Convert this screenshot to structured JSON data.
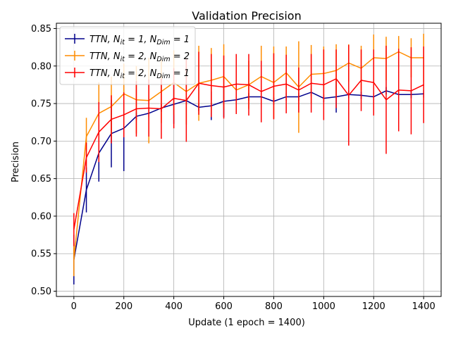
{
  "chart_data": {
    "type": "line",
    "title": "Validation Precision",
    "xlabel": "Update (1 epoch = 1400)",
    "ylabel": "Precision",
    "xlim": [
      -70,
      1470
    ],
    "ylim": [
      0.493,
      0.857
    ],
    "xticks": [
      0,
      200,
      400,
      600,
      800,
      1000,
      1200,
      1400
    ],
    "yticks": [
      0.5,
      0.55,
      0.6,
      0.65,
      0.7,
      0.75,
      0.8,
      0.85
    ],
    "xtick_labels": [
      "0",
      "200",
      "400",
      "600",
      "800",
      "1000",
      "1200",
      "1400"
    ],
    "ytick_labels": [
      "0.50",
      "0.55",
      "0.60",
      "0.65",
      "0.70",
      "0.75",
      "0.80",
      "0.85"
    ],
    "grid": true,
    "legend_position": "top-left",
    "x": [
      0,
      50,
      100,
      150,
      200,
      250,
      300,
      350,
      400,
      450,
      500,
      550,
      600,
      650,
      700,
      750,
      800,
      850,
      900,
      950,
      1000,
      1050,
      1100,
      1150,
      1200,
      1250,
      1300,
      1350,
      1400
    ],
    "series": [
      {
        "name": "TTN, N_it = 1, N_Dim = 1",
        "legend": {
          "prefix": "TTN, N",
          "sub1": "it",
          "mid": " = 1, N",
          "sub2": "Dim",
          "suffix": " = 1"
        },
        "color": "#00008b",
        "values": [
          0.542,
          0.635,
          0.684,
          0.71,
          0.717,
          0.733,
          0.737,
          0.744,
          0.749,
          0.754,
          0.745,
          0.747,
          0.753,
          0.755,
          0.759,
          0.759,
          0.753,
          0.759,
          0.759,
          0.765,
          0.757,
          0.759,
          0.762,
          0.761,
          0.759,
          0.767,
          0.762,
          0.762,
          0.763
        ],
        "err": [
          0.033,
          0.03,
          0.038,
          0.045,
          0.057,
          0.005,
          0.005,
          0.005,
          0.026,
          0.005,
          0.005,
          0.019,
          0.021,
          0.005,
          0.005,
          0.005,
          0.005,
          0.005,
          0.005,
          0.005,
          0.005,
          0.021,
          0.005,
          0.005,
          0.005,
          0.005,
          0.005,
          0.005,
          0.005
        ]
      },
      {
        "name": "TTN, N_it = 2, N_Dim = 2",
        "legend": {
          "prefix": "TTN, N",
          "sub1": "it",
          "mid": " = 2, N",
          "sub2": "Dim",
          "suffix": " = 2"
        },
        "color": "#ff8c00",
        "values": [
          0.542,
          0.706,
          0.737,
          0.746,
          0.763,
          0.755,
          0.754,
          0.766,
          0.778,
          0.766,
          0.777,
          0.781,
          0.786,
          0.768,
          0.775,
          0.786,
          0.778,
          0.791,
          0.772,
          0.789,
          0.79,
          0.794,
          0.804,
          0.797,
          0.811,
          0.81,
          0.819,
          0.811,
          0.811
        ],
        "err": [
          0.022,
          0.025,
          0.041,
          0.04,
          0.04,
          0.045,
          0.057,
          0.042,
          0.043,
          0.044,
          0.05,
          0.043,
          0.043,
          0.03,
          0.032,
          0.041,
          0.048,
          0.035,
          0.061,
          0.039,
          0.036,
          0.035,
          0.025,
          0.03,
          0.031,
          0.029,
          0.021,
          0.026,
          0.032
        ]
      },
      {
        "name": "TTN, N_it = 2, N_Dim = 1",
        "legend": {
          "prefix": "TTN, N",
          "sub1": "it",
          "mid": " = 2, N",
          "sub2": "Dim",
          "suffix": " = 1"
        },
        "color": "#ff0000",
        "values": [
          0.582,
          0.678,
          0.712,
          0.729,
          0.735,
          0.743,
          0.744,
          0.743,
          0.757,
          0.754,
          0.777,
          0.774,
          0.772,
          0.776,
          0.775,
          0.766,
          0.773,
          0.776,
          0.768,
          0.777,
          0.775,
          0.783,
          0.761,
          0.781,
          0.778,
          0.755,
          0.768,
          0.767,
          0.775
        ],
        "err": [
          0.022,
          0.02,
          0.04,
          0.032,
          0.03,
          0.037,
          0.038,
          0.04,
          0.04,
          0.055,
          0.042,
          0.042,
          0.042,
          0.04,
          0.041,
          0.041,
          0.044,
          0.039,
          0.03,
          0.039,
          0.047,
          0.039,
          0.067,
          0.041,
          0.044,
          0.072,
          0.055,
          0.058,
          0.051
        ]
      }
    ]
  }
}
